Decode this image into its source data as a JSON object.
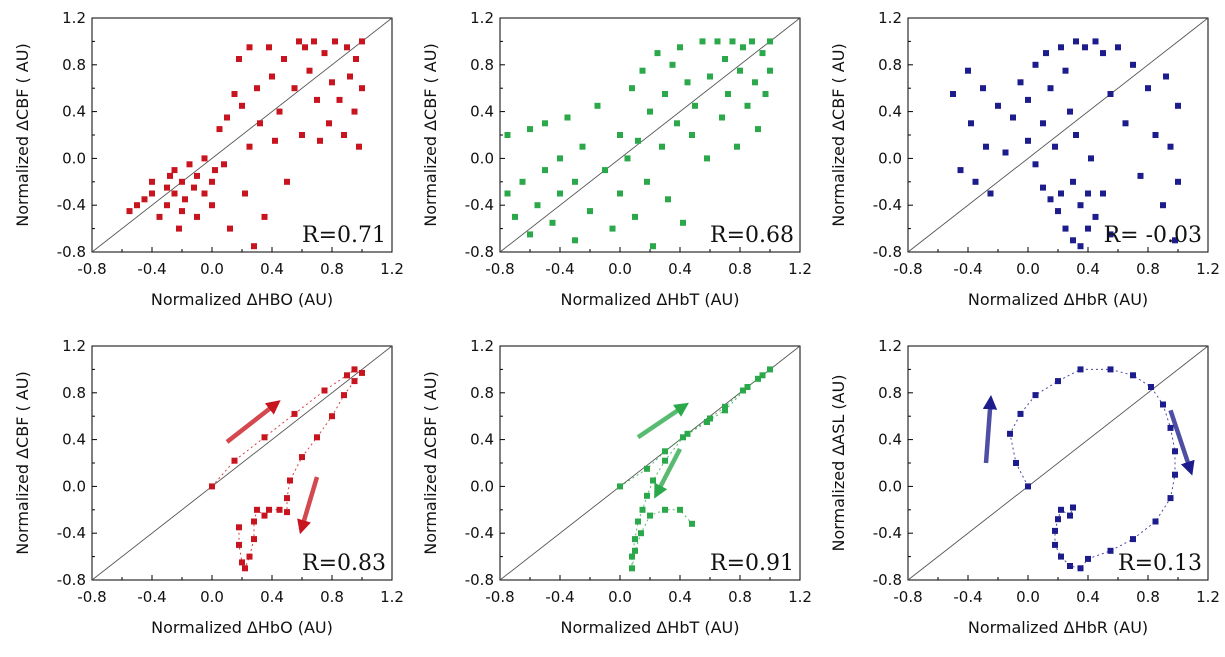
{
  "chart_data": [
    {
      "type": "scatter",
      "xlabel": "Normalized ΔHBO (AU)",
      "ylabel": "Normalized ΔCBF ( AU)",
      "annotation": "R=0.71",
      "xlim": [
        -0.8,
        1.2
      ],
      "ylim": [
        -0.8,
        1.2
      ],
      "xticks": [
        "-0.8",
        "-0.4",
        "0.0",
        "0.4",
        "0.8",
        "1.2"
      ],
      "yticks": [
        "-0.8",
        "-0.4",
        "0.0",
        "0.4",
        "0.8",
        "1.2"
      ],
      "color": "#c8141e",
      "connected": false,
      "reference_line": "y=x",
      "points": [
        [
          -0.55,
          -0.45
        ],
        [
          -0.5,
          -0.4
        ],
        [
          -0.45,
          -0.35
        ],
        [
          -0.4,
          -0.3
        ],
        [
          -0.4,
          -0.2
        ],
        [
          -0.35,
          -0.5
        ],
        [
          -0.3,
          -0.25
        ],
        [
          -0.3,
          -0.4
        ],
        [
          -0.28,
          -0.15
        ],
        [
          -0.25,
          -0.3
        ],
        [
          -0.25,
          -0.1
        ],
        [
          -0.22,
          -0.6
        ],
        [
          -0.2,
          -0.45
        ],
        [
          -0.2,
          -0.2
        ],
        [
          -0.18,
          -0.35
        ],
        [
          -0.15,
          -0.05
        ],
        [
          -0.12,
          -0.25
        ],
        [
          -0.1,
          -0.5
        ],
        [
          -0.1,
          -0.15
        ],
        [
          -0.05,
          -0.3
        ],
        [
          -0.05,
          0.0
        ],
        [
          0.0,
          -0.2
        ],
        [
          0.0,
          -0.4
        ],
        [
          0.02,
          -0.1
        ],
        [
          0.05,
          0.25
        ],
        [
          0.08,
          -0.05
        ],
        [
          0.1,
          0.35
        ],
        [
          0.12,
          -0.6
        ],
        [
          0.15,
          0.55
        ],
        [
          0.18,
          0.85
        ],
        [
          0.2,
          0.45
        ],
        [
          0.22,
          -0.3
        ],
        [
          0.25,
          0.95
        ],
        [
          0.25,
          0.1
        ],
        [
          0.28,
          -0.75
        ],
        [
          0.3,
          0.6
        ],
        [
          0.32,
          0.3
        ],
        [
          0.35,
          -0.5
        ],
        [
          0.38,
          0.95
        ],
        [
          0.4,
          0.7
        ],
        [
          0.42,
          0.15
        ],
        [
          0.45,
          0.4
        ],
        [
          0.48,
          0.85
        ],
        [
          0.5,
          -0.2
        ],
        [
          0.55,
          0.6
        ],
        [
          0.58,
          1.0
        ],
        [
          0.6,
          0.2
        ],
        [
          0.62,
          0.95
        ],
        [
          0.65,
          0.75
        ],
        [
          0.68,
          1.0
        ],
        [
          0.7,
          0.5
        ],
        [
          0.72,
          0.15
        ],
        [
          0.75,
          0.9
        ],
        [
          0.78,
          0.3
        ],
        [
          0.8,
          0.65
        ],
        [
          0.82,
          1.0
        ],
        [
          0.85,
          0.5
        ],
        [
          0.88,
          0.2
        ],
        [
          0.9,
          0.95
        ],
        [
          0.92,
          0.7
        ],
        [
          0.95,
          0.4
        ],
        [
          0.96,
          0.85
        ],
        [
          0.98,
          0.1
        ],
        [
          1.0,
          1.0
        ],
        [
          1.0,
          0.6
        ]
      ]
    },
    {
      "type": "scatter",
      "xlabel": "Normalized ΔHbT (AU)",
      "ylabel": "Normalized ΔCBF ( AU)",
      "annotation": "R=0.68",
      "xlim": [
        -0.8,
        1.2
      ],
      "ylim": [
        -0.8,
        1.2
      ],
      "xticks": [
        "-0.8",
        "-0.4",
        "0.0",
        "0.4",
        "0.8",
        "1.2"
      ],
      "yticks": [
        "-0.8",
        "-0.4",
        "0.0",
        "0.4",
        "0.8",
        "1.2"
      ],
      "color": "#2aa84a",
      "connected": false,
      "reference_line": "y=x",
      "points": [
        [
          -0.75,
          0.2
        ],
        [
          -0.75,
          -0.3
        ],
        [
          -0.7,
          -0.5
        ],
        [
          -0.65,
          -0.2
        ],
        [
          -0.6,
          0.25
        ],
        [
          -0.6,
          -0.65
        ],
        [
          -0.55,
          -0.4
        ],
        [
          -0.5,
          0.3
        ],
        [
          -0.5,
          -0.1
        ],
        [
          -0.45,
          -0.55
        ],
        [
          -0.4,
          0.0
        ],
        [
          -0.4,
          -0.3
        ],
        [
          -0.35,
          0.35
        ],
        [
          -0.3,
          -0.2
        ],
        [
          -0.3,
          -0.7
        ],
        [
          -0.25,
          0.1
        ],
        [
          -0.2,
          -0.45
        ],
        [
          -0.15,
          0.45
        ],
        [
          -0.1,
          -0.1
        ],
        [
          -0.05,
          -0.6
        ],
        [
          0.0,
          0.2
        ],
        [
          0.0,
          -0.3
        ],
        [
          0.05,
          0.0
        ],
        [
          0.08,
          0.6
        ],
        [
          0.1,
          -0.5
        ],
        [
          0.12,
          0.15
        ],
        [
          0.15,
          0.75
        ],
        [
          0.18,
          -0.2
        ],
        [
          0.2,
          0.4
        ],
        [
          0.22,
          -0.75
        ],
        [
          0.25,
          0.9
        ],
        [
          0.28,
          0.1
        ],
        [
          0.3,
          0.55
        ],
        [
          0.32,
          -0.35
        ],
        [
          0.35,
          0.8
        ],
        [
          0.38,
          0.3
        ],
        [
          0.4,
          0.95
        ],
        [
          0.42,
          -0.55
        ],
        [
          0.45,
          0.65
        ],
        [
          0.48,
          0.2
        ],
        [
          0.5,
          0.45
        ],
        [
          0.55,
          1.0
        ],
        [
          0.58,
          0.0
        ],
        [
          0.6,
          0.7
        ],
        [
          0.65,
          1.0
        ],
        [
          0.68,
          0.35
        ],
        [
          0.7,
          0.85
        ],
        [
          0.72,
          0.55
        ],
        [
          0.75,
          1.0
        ],
        [
          0.78,
          0.1
        ],
        [
          0.8,
          0.75
        ],
        [
          0.82,
          0.95
        ],
        [
          0.85,
          0.45
        ],
        [
          0.88,
          1.0
        ],
        [
          0.9,
          0.65
        ],
        [
          0.92,
          0.25
        ],
        [
          0.95,
          0.9
        ],
        [
          0.97,
          0.55
        ],
        [
          1.0,
          1.0
        ],
        [
          1.0,
          0.75
        ]
      ]
    },
    {
      "type": "scatter",
      "xlabel": "Normalized ΔHbR (AU)",
      "ylabel": "Normalized ΔCBF ( AU)",
      "annotation": "R= -0.03",
      "xlim": [
        -0.8,
        1.2
      ],
      "ylim": [
        -0.8,
        1.2
      ],
      "xticks": [
        "-0.8",
        "-0.4",
        "0.0",
        "0.4",
        "0.8",
        "1.2"
      ],
      "yticks": [
        "-0.8",
        "-0.4",
        "0.0",
        "0.4",
        "0.8",
        "1.2"
      ],
      "color": "#1c1c8c",
      "connected": false,
      "reference_line": "y=x",
      "points": [
        [
          -0.5,
          0.55
        ],
        [
          -0.45,
          -0.1
        ],
        [
          -0.4,
          0.75
        ],
        [
          -0.38,
          0.3
        ],
        [
          -0.35,
          -0.2
        ],
        [
          -0.3,
          0.6
        ],
        [
          -0.28,
          0.1
        ],
        [
          -0.25,
          -0.3
        ],
        [
          -0.2,
          0.45
        ],
        [
          -0.15,
          0.05
        ],
        [
          -0.1,
          0.35
        ],
        [
          -0.05,
          0.65
        ],
        [
          0.0,
          0.15
        ],
        [
          0.0,
          0.5
        ],
        [
          0.05,
          0.8
        ],
        [
          0.05,
          -0.05
        ],
        [
          0.1,
          0.3
        ],
        [
          0.1,
          -0.25
        ],
        [
          0.12,
          0.9
        ],
        [
          0.15,
          0.6
        ],
        [
          0.15,
          -0.35
        ],
        [
          0.18,
          0.1
        ],
        [
          0.2,
          -0.45
        ],
        [
          0.22,
          0.95
        ],
        [
          0.22,
          -0.3
        ],
        [
          0.25,
          0.75
        ],
        [
          0.25,
          -0.6
        ],
        [
          0.28,
          0.4
        ],
        [
          0.3,
          -0.2
        ],
        [
          0.3,
          -0.7
        ],
        [
          0.32,
          1.0
        ],
        [
          0.32,
          0.2
        ],
        [
          0.35,
          -0.4
        ],
        [
          0.35,
          -0.75
        ],
        [
          0.38,
          0.95
        ],
        [
          0.4,
          -0.3
        ],
        [
          0.4,
          -0.6
        ],
        [
          0.42,
          0.0
        ],
        [
          0.45,
          1.0
        ],
        [
          0.45,
          -0.5
        ],
        [
          0.5,
          -0.3
        ],
        [
          0.5,
          0.9
        ],
        [
          0.55,
          -0.65
        ],
        [
          0.55,
          0.55
        ],
        [
          0.6,
          0.95
        ],
        [
          0.65,
          0.3
        ],
        [
          0.7,
          0.8
        ],
        [
          0.75,
          -0.15
        ],
        [
          0.8,
          0.6
        ],
        [
          0.85,
          0.2
        ],
        [
          0.9,
          -0.4
        ],
        [
          0.92,
          0.7
        ],
        [
          0.95,
          0.1
        ],
        [
          0.98,
          -0.7
        ],
        [
          1.0,
          0.45
        ],
        [
          1.0,
          -0.2
        ]
      ]
    },
    {
      "type": "scatter",
      "xlabel": "Normalized ΔHbO (AU)",
      "ylabel": "Normalized ΔCBF ( AU)",
      "annotation": "R=0.83",
      "xlim": [
        -0.8,
        1.2
      ],
      "ylim": [
        -0.8,
        1.2
      ],
      "xticks": [
        "-0.8",
        "-0.4",
        "0.0",
        "0.4",
        "0.8",
        "1.2"
      ],
      "yticks": [
        "-0.8",
        "-0.4",
        "0.0",
        "0.4",
        "0.8",
        "1.2"
      ],
      "color": "#c8141e",
      "connected": true,
      "reference_line": "y=x",
      "points": [
        [
          0.0,
          0.0
        ],
        [
          0.15,
          0.22
        ],
        [
          0.35,
          0.42
        ],
        [
          0.55,
          0.62
        ],
        [
          0.75,
          0.82
        ],
        [
          0.9,
          0.95
        ],
        [
          0.95,
          1.0
        ],
        [
          1.0,
          0.97
        ],
        [
          0.95,
          0.9
        ],
        [
          0.88,
          0.78
        ],
        [
          0.8,
          0.6
        ],
        [
          0.7,
          0.42
        ],
        [
          0.6,
          0.25
        ],
        [
          0.52,
          0.05
        ],
        [
          0.5,
          -0.1
        ],
        [
          0.5,
          -0.22
        ],
        [
          0.45,
          -0.2
        ],
        [
          0.38,
          -0.2
        ],
        [
          0.35,
          -0.25
        ],
        [
          0.3,
          -0.2
        ],
        [
          0.28,
          -0.3
        ],
        [
          0.28,
          -0.45
        ],
        [
          0.25,
          -0.6
        ],
        [
          0.22,
          -0.7
        ],
        [
          0.2,
          -0.65
        ],
        [
          0.18,
          -0.5
        ],
        [
          0.18,
          -0.35
        ]
      ],
      "arrows": [
        {
          "from": [
            0.1,
            0.38
          ],
          "to": [
            0.42,
            0.7
          ]
        },
        {
          "from": [
            0.7,
            0.08
          ],
          "to": [
            0.6,
            -0.35
          ]
        }
      ]
    },
    {
      "type": "scatter",
      "xlabel": "Normalized ΔHbT (AU)",
      "ylabel": "Normalized ΔCBF ( AU)",
      "annotation": "R=0.91",
      "xlim": [
        -0.8,
        1.2
      ],
      "ylim": [
        -0.8,
        1.2
      ],
      "xticks": [
        "-0.8",
        "-0.4",
        "0.0",
        "0.4",
        "0.8",
        "1.2"
      ],
      "yticks": [
        "-0.8",
        "-0.4",
        "0.0",
        "0.4",
        "0.8",
        "1.2"
      ],
      "color": "#2aa84a",
      "connected": true,
      "reference_line": "y=x",
      "points": [
        [
          0.0,
          0.0
        ],
        [
          0.18,
          0.15
        ],
        [
          0.3,
          0.3
        ],
        [
          0.45,
          0.45
        ],
        [
          0.6,
          0.58
        ],
        [
          0.7,
          0.68
        ],
        [
          0.82,
          0.82
        ],
        [
          0.92,
          0.92
        ],
        [
          1.0,
          1.0
        ],
        [
          0.95,
          0.95
        ],
        [
          0.85,
          0.85
        ],
        [
          0.7,
          0.65
        ],
        [
          0.58,
          0.55
        ],
        [
          0.42,
          0.42
        ],
        [
          0.3,
          0.22
        ],
        [
          0.22,
          0.05
        ],
        [
          0.18,
          -0.08
        ],
        [
          0.15,
          -0.2
        ],
        [
          0.12,
          -0.3
        ],
        [
          0.1,
          -0.45
        ],
        [
          0.08,
          -0.6
        ],
        [
          0.08,
          -0.7
        ],
        [
          0.1,
          -0.55
        ],
        [
          0.14,
          -0.4
        ],
        [
          0.2,
          -0.25
        ],
        [
          0.3,
          -0.2
        ],
        [
          0.4,
          -0.2
        ],
        [
          0.48,
          -0.32
        ]
      ],
      "arrows": [
        {
          "from": [
            0.12,
            0.42
          ],
          "to": [
            0.42,
            0.68
          ]
        },
        {
          "from": [
            0.4,
            0.32
          ],
          "to": [
            0.25,
            -0.05
          ]
        }
      ]
    },
    {
      "type": "scatter",
      "xlabel": "Normalized ΔHbR (AU)",
      "ylabel": "Normalized ΔASL (AU)",
      "annotation": "R=0.13",
      "xlim": [
        -0.8,
        1.2
      ],
      "ylim": [
        -0.8,
        1.2
      ],
      "xticks": [
        "-0.8",
        "-0.4",
        "0.0",
        "0.4",
        "0.8",
        "1.2"
      ],
      "yticks": [
        "-0.8",
        "-0.4",
        "0.0",
        "0.4",
        "0.8",
        "1.2"
      ],
      "color": "#1c1c8c",
      "connected": true,
      "reference_line": "y=x",
      "points": [
        [
          0.0,
          0.0
        ],
        [
          -0.08,
          0.2
        ],
        [
          -0.12,
          0.45
        ],
        [
          -0.05,
          0.62
        ],
        [
          0.05,
          0.78
        ],
        [
          0.2,
          0.9
        ],
        [
          0.35,
          1.0
        ],
        [
          0.55,
          1.0
        ],
        [
          0.7,
          0.95
        ],
        [
          0.82,
          0.85
        ],
        [
          0.9,
          0.7
        ],
        [
          0.95,
          0.5
        ],
        [
          0.98,
          0.3
        ],
        [
          0.98,
          0.1
        ],
        [
          0.95,
          -0.1
        ],
        [
          0.85,
          -0.3
        ],
        [
          0.7,
          -0.45
        ],
        [
          0.55,
          -0.55
        ],
        [
          0.4,
          -0.62
        ],
        [
          0.35,
          -0.7
        ],
        [
          0.28,
          -0.68
        ],
        [
          0.22,
          -0.6
        ],
        [
          0.18,
          -0.5
        ],
        [
          0.18,
          -0.38
        ],
        [
          0.2,
          -0.28
        ],
        [
          0.22,
          -0.2
        ],
        [
          0.28,
          -0.25
        ],
        [
          0.3,
          -0.18
        ]
      ],
      "arrows": [
        {
          "from": [
            -0.28,
            0.2
          ],
          "to": [
            -0.25,
            0.72
          ]
        },
        {
          "from": [
            0.95,
            0.65
          ],
          "to": [
            1.08,
            0.15
          ]
        }
      ]
    }
  ]
}
